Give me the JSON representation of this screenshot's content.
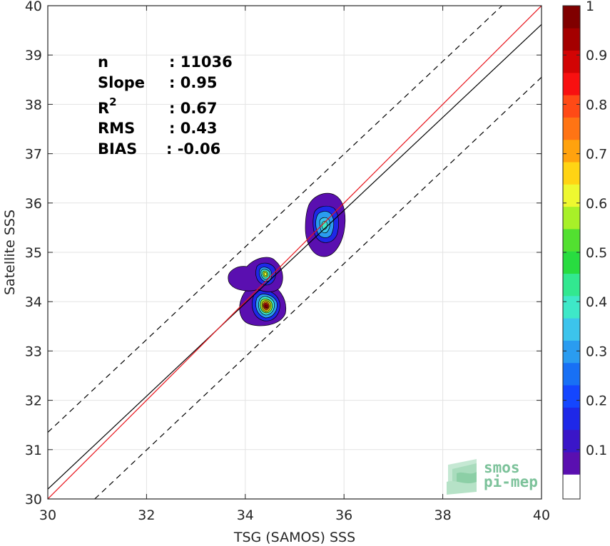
{
  "chart_data": {
    "type": "scatter",
    "subtype": "density-contour",
    "title": "",
    "xlabel": "TSG (SAMOS) SSS",
    "ylabel": "Satellite SSS",
    "xlim": [
      30,
      40
    ],
    "ylim": [
      30,
      40
    ],
    "xticks": [
      "30",
      "32",
      "34",
      "36",
      "38",
      "40"
    ],
    "yticks": [
      "30",
      "31",
      "32",
      "33",
      "34",
      "35",
      "36",
      "37",
      "38",
      "39",
      "40"
    ],
    "grid": true,
    "stats": [
      {
        "label": "n",
        "value": ": 11036"
      },
      {
        "label": "Slope",
        "value": ": 0.95"
      },
      {
        "label": "R",
        "sup": "2",
        "value": ": 0.67"
      },
      {
        "label": "RMS",
        "value": ": 0.43"
      },
      {
        "label": "BIAS",
        "value": ": -0.06"
      }
    ],
    "lines": {
      "one_to_one": {
        "color": "#e8141c",
        "from": [
          30,
          30
        ],
        "to": [
          40,
          40
        ]
      },
      "fit": {
        "color": "#000000",
        "from": [
          30,
          30.2
        ],
        "to": [
          40,
          39.62
        ]
      },
      "upper_bound": {
        "color": "#000000",
        "style": "dashed",
        "from": [
          30,
          31.35
        ],
        "to": [
          39.2,
          40
        ]
      },
      "lower_bound": {
        "color": "#000000",
        "style": "dashed",
        "from": [
          30.95,
          30
        ],
        "to": [
          40,
          38.55
        ]
      }
    },
    "density_peaks": [
      {
        "x": 34.42,
        "y": 33.92,
        "value": 1.0
      },
      {
        "x": 34.42,
        "y": 34.55,
        "value": 0.55
      },
      {
        "x": 35.58,
        "y": 35.55,
        "value": 0.45
      }
    ],
    "colorbar": {
      "ticks": [
        "1",
        "0.9",
        "0.8",
        "0.7",
        "0.6",
        "0.5",
        "0.4",
        "0.3",
        "0.2",
        "0.1"
      ],
      "range": [
        0,
        1
      ],
      "colors": [
        "#5a0fb0",
        "#3a16c8",
        "#1e28e8",
        "#1446ff",
        "#1870f5",
        "#2a9cf0",
        "#3cc4ec",
        "#3ee8c8",
        "#32e890",
        "#28dc40",
        "#52e030",
        "#a8f028",
        "#eef830",
        "#ffd414",
        "#ffa20e",
        "#ff7414",
        "#ff4a16",
        "#f81010",
        "#d20404",
        "#a40000",
        "#800000"
      ]
    }
  },
  "logo": {
    "line1": "smos",
    "line2": "pi-mep"
  }
}
